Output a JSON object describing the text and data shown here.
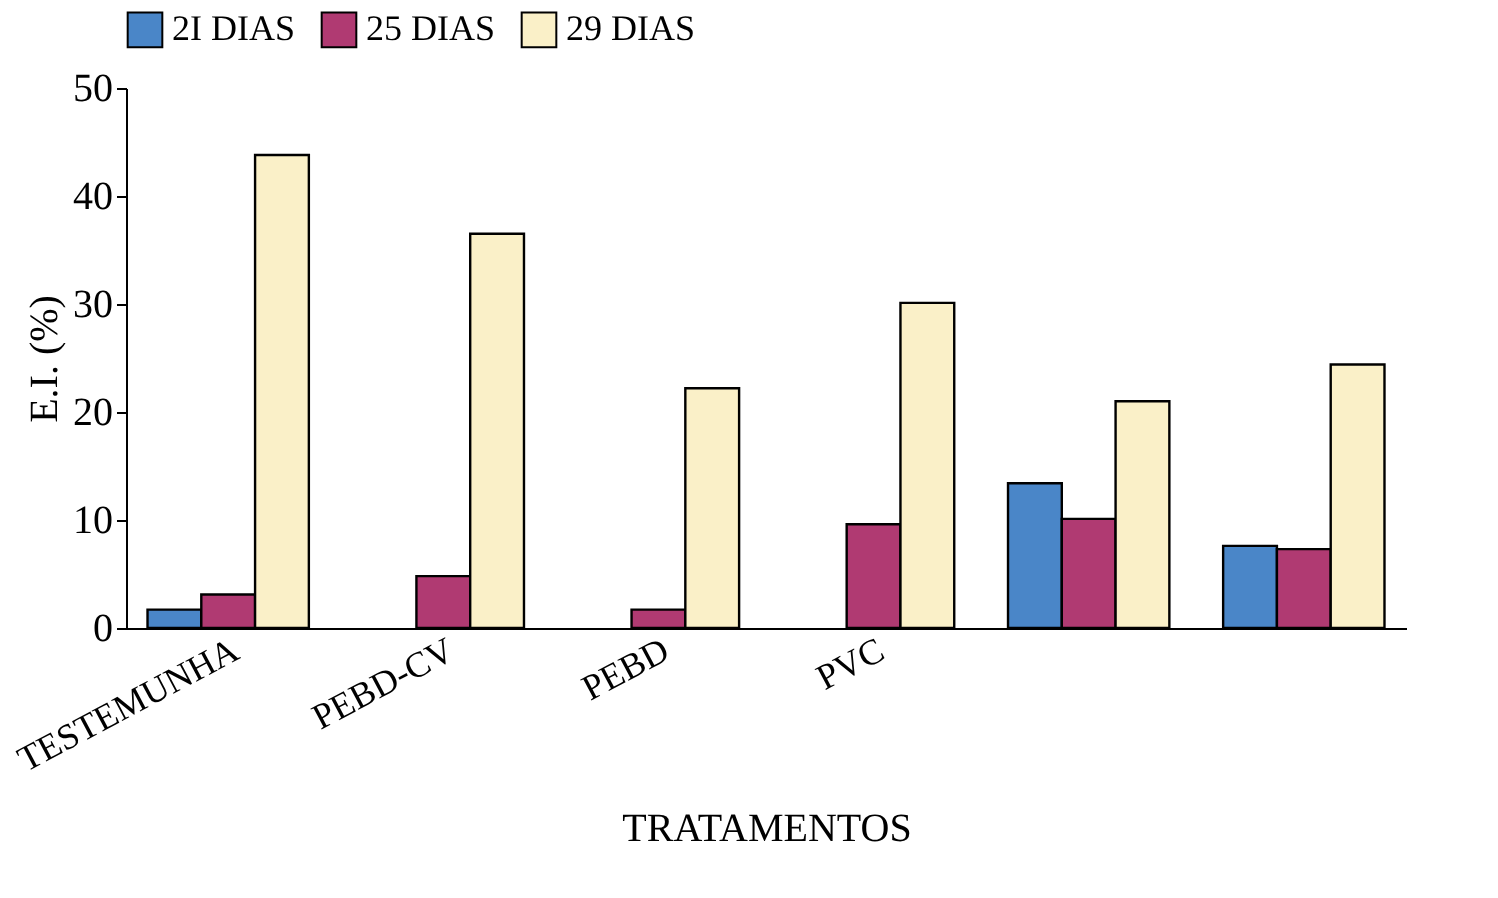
{
  "chart_data": {
    "type": "bar",
    "xlabel": "TRATAMENTOS",
    "ylabel": "E.I. (%)",
    "categories": [
      "TESTEMUNHA",
      "PEBD-CV",
      "PEBD",
      "PVC",
      null,
      null
    ],
    "series": [
      {
        "name": "2I DIAS",
        "color": "#4a86c8",
        "values": [
          1.7,
          null,
          null,
          null,
          13.4,
          7.6
        ]
      },
      {
        "name": "25 DIAS",
        "color": "#b03a72",
        "values": [
          3.1,
          4.8,
          1.7,
          9.6,
          10.1,
          7.3
        ]
      },
      {
        "name": "29 DIAS",
        "color": "#faf0c8",
        "values": [
          43.8,
          36.5,
          22.2,
          30.1,
          21.0,
          24.4
        ]
      }
    ],
    "ylim": [
      0,
      50
    ],
    "yticks": [
      0,
      10,
      20,
      30,
      40,
      50
    ],
    "grid": false,
    "legend": "top"
  }
}
